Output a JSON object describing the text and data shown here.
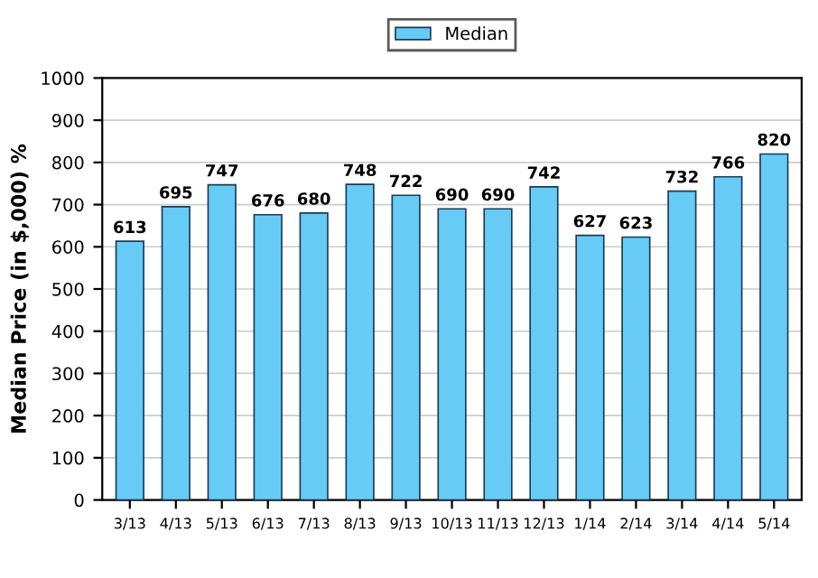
{
  "chart_data": {
    "type": "bar",
    "ylabel": "Median Price (in $,000) %",
    "categories": [
      "3/13",
      "4/13",
      "5/13",
      "6/13",
      "7/13",
      "8/13",
      "9/13",
      "10/13",
      "11/13",
      "12/13",
      "1/14",
      "2/14",
      "3/14",
      "4/14",
      "5/14"
    ],
    "series": [
      {
        "name": "Median",
        "color": "#66ccf5",
        "values": [
          613,
          695,
          747,
          676,
          680,
          748,
          722,
          690,
          690,
          742,
          627,
          623,
          732,
          766,
          820
        ]
      }
    ],
    "ylim": [
      0,
      1000
    ],
    "yticks": [
      0,
      100,
      200,
      300,
      400,
      500,
      600,
      700,
      800,
      900,
      1000
    ],
    "grid": "y",
    "legend": "top",
    "data_labels": true
  }
}
